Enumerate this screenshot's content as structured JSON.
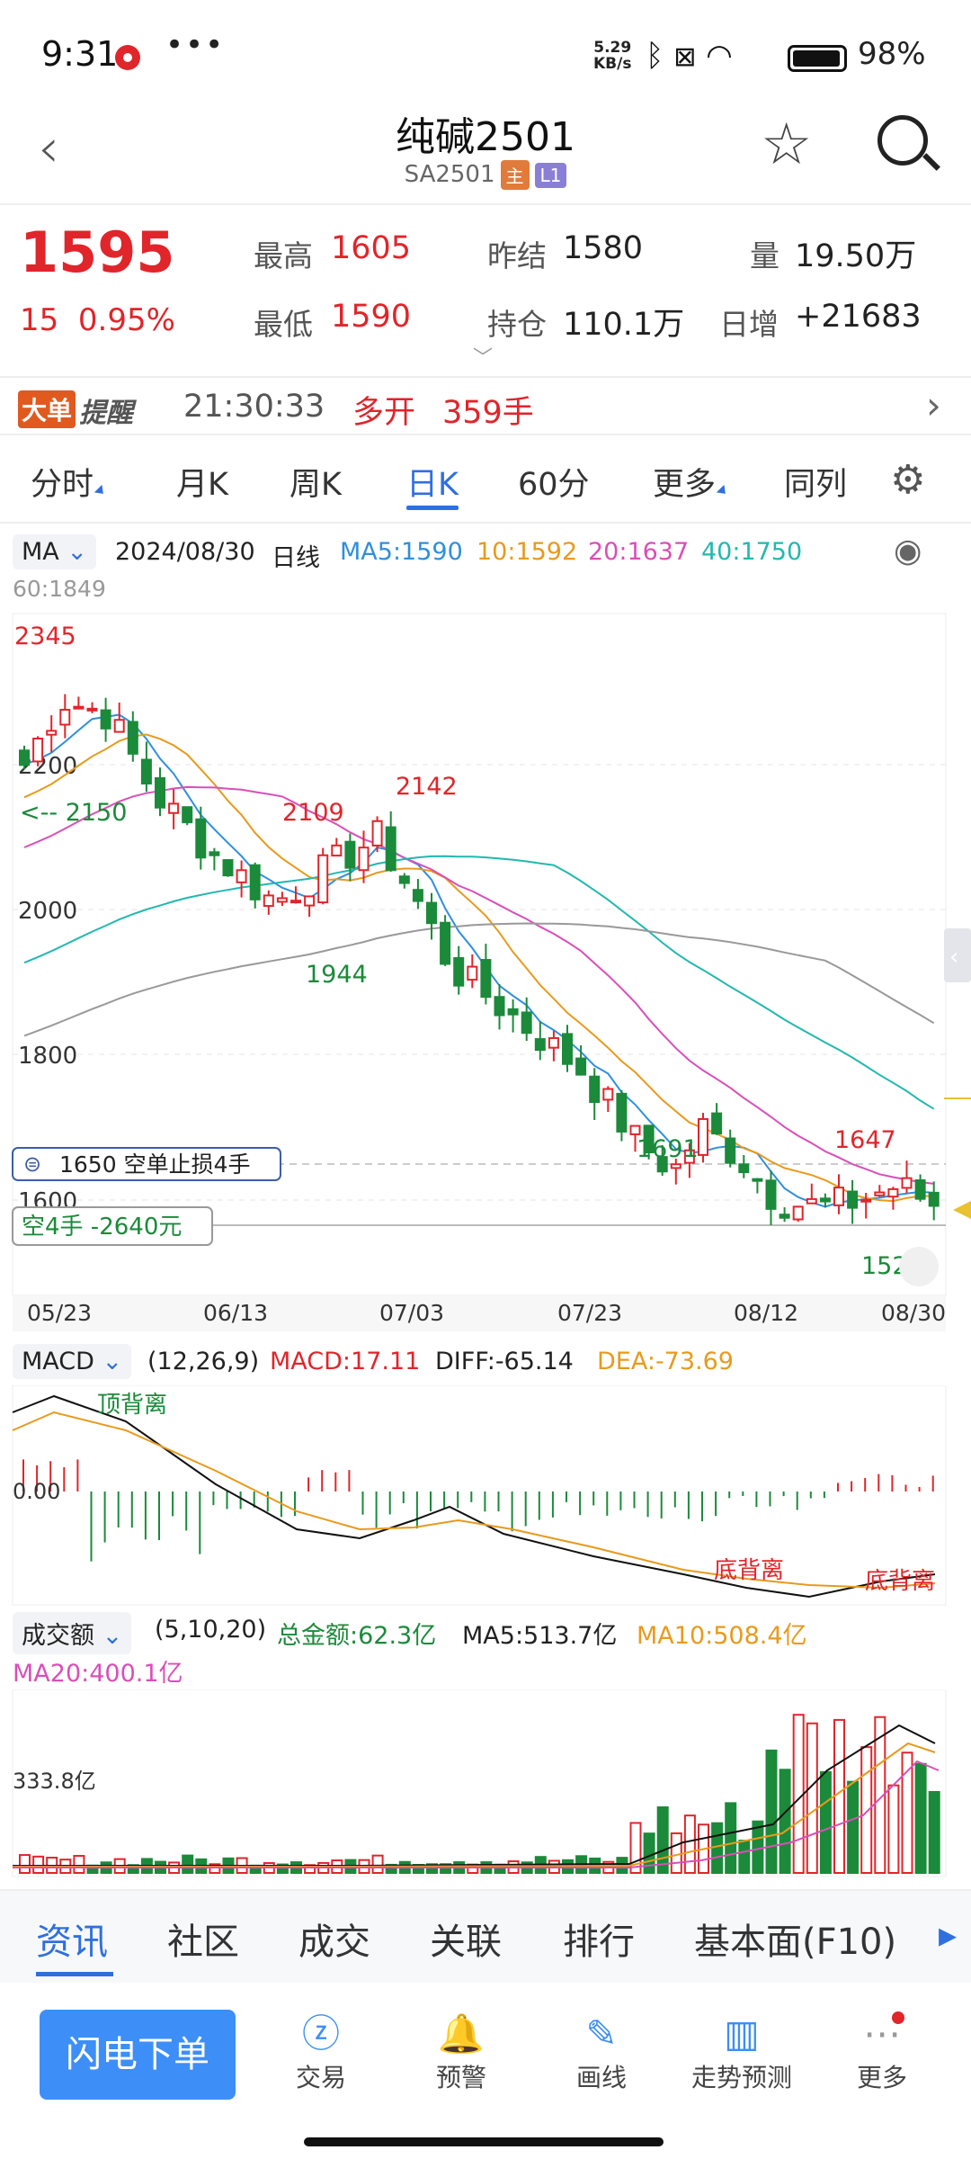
{
  "status_bar": {
    "time": "9:31",
    "more": "•••",
    "speed": "5.29\nKB/s",
    "battery_pct": "98%"
  },
  "header": {
    "title": "纯碱2501",
    "code": "SA2501",
    "tag_main": "主",
    "tag_l1": "L1"
  },
  "quote": {
    "price": "1595",
    "change": "15",
    "change_pct": "0.95%",
    "high_label": "最高",
    "high": "1605",
    "low_label": "最低",
    "low": "1590",
    "prev_settle_label": "昨结",
    "prev_settle": "1580",
    "open_interest_label": "持仓",
    "open_interest": "110.1万",
    "volume_label": "量",
    "volume": "19.50万",
    "daily_inc_label": "日增",
    "daily_inc": "+21683"
  },
  "alert": {
    "badge1": "大单",
    "badge2": "提醒",
    "time": "21:30:33",
    "direction": "多开",
    "lots": "359手"
  },
  "tabs": [
    {
      "label": "分时",
      "active": false,
      "dropdown": true
    },
    {
      "label": "月K",
      "active": false,
      "dropdown": false
    },
    {
      "label": "周K",
      "active": false,
      "dropdown": false
    },
    {
      "label": "日K",
      "active": true,
      "dropdown": false
    },
    {
      "label": "60分",
      "active": false,
      "dropdown": false
    },
    {
      "label": "更多",
      "active": false,
      "dropdown": true
    },
    {
      "label": "同列",
      "active": false,
      "dropdown": false
    }
  ],
  "ma_bar": {
    "indicator": "MA",
    "date": "2024/08/30",
    "period": "日线",
    "ma5": "MA5:1590",
    "ma10": "10:1592",
    "ma20": "20:1637",
    "ma40": "40:1750",
    "ma60": "60:1849"
  },
  "kline": {
    "y_ticks": [
      "2200",
      "2000",
      "1800",
      "1600"
    ],
    "x_ticks": [
      "05/23",
      "06/13",
      "07/03",
      "07/23",
      "08/12",
      "08/30"
    ],
    "annotations": {
      "high1": "2345",
      "p2109": "2109",
      "p2142": "2142",
      "p1944": "1944",
      "p1691": "1691",
      "p1647": "1647",
      "p1529": "1529",
      "level": "<-- 2150"
    },
    "order_label": "1650  空单止损4手",
    "position_label": "空4手  -2640元"
  },
  "macd": {
    "selector": "MACD",
    "params": "(12,26,9)",
    "macd": "MACD:17.11",
    "diff": "DIFF:-65.14",
    "dea": "DEA:-73.69",
    "zero": "0.00",
    "top_div": "顶背离",
    "bottom_div1": "底背离",
    "bottom_div2": "底背离"
  },
  "volume_panel": {
    "selector": "成交额",
    "params": "(5,10,20)",
    "total": "总金额:62.3亿",
    "ma5": "MA5:513.7亿",
    "ma10": "MA10:508.4亿",
    "ma20": "MA20:400.1亿",
    "y_label": "333.8亿"
  },
  "info_tabs": [
    "资讯",
    "社区",
    "成交",
    "关联",
    "排行",
    "基本面(F10)"
  ],
  "nav": {
    "order": "闪电下单",
    "items": [
      {
        "label": "交易",
        "icon": "trade-icon"
      },
      {
        "label": "预警",
        "icon": "bell-icon"
      },
      {
        "label": "画线",
        "icon": "pen-icon"
      },
      {
        "label": "走势预测",
        "icon": "forecast-icon"
      },
      {
        "label": "更多",
        "icon": "more-icon"
      }
    ]
  },
  "colors": {
    "up": "#e0252b",
    "down": "#1b8a3a",
    "accent": "#2f6fde",
    "ma5": "#2f8fdd",
    "ma10": "#e89a1c",
    "ma20": "#d94fb8",
    "ma40": "#22b8b0",
    "ma60": "#999999"
  }
}
